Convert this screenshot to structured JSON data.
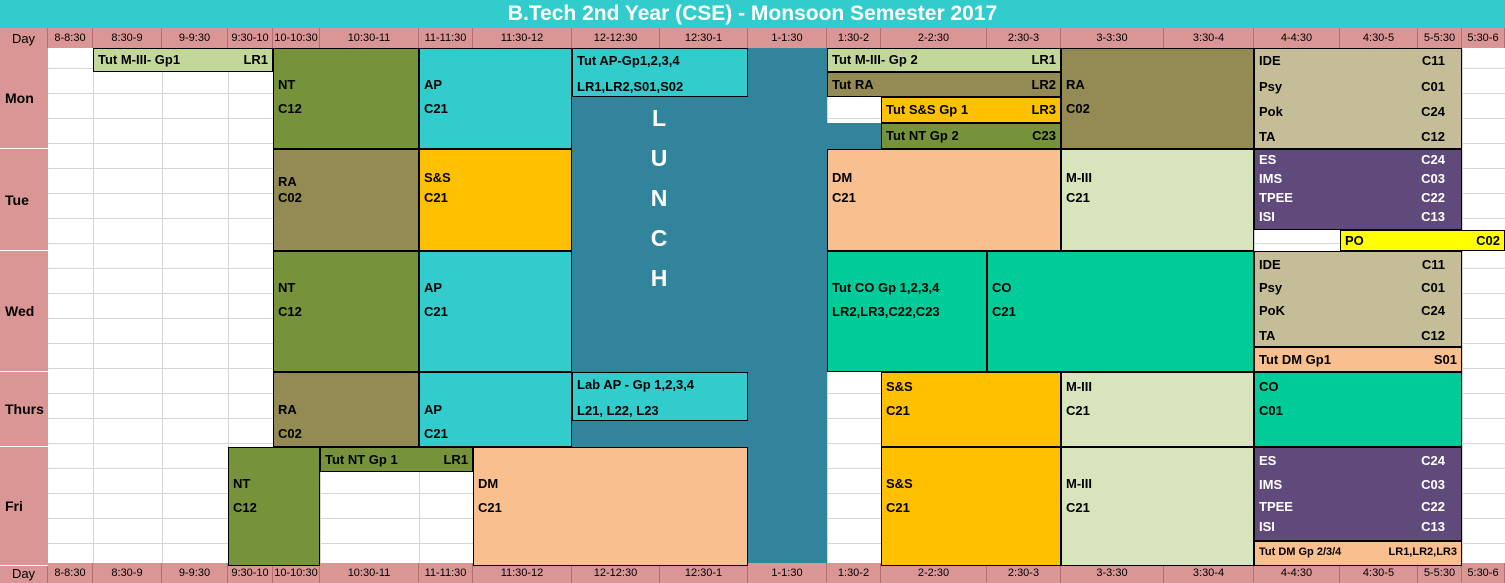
{
  "title": "B.Tech 2nd Year (CSE) - Monsoon Semester 2017",
  "header_label": "Day",
  "time_slots": [
    "8-8:30",
    "8:30-9",
    "9-9:30",
    "9:30-10",
    "10-10:30",
    "10:30-11",
    "11-11:30",
    "11:30-12",
    "12-12:30",
    "12:30-1",
    "1-1:30",
    "1:30-2",
    "2-2:30",
    "2:30-3",
    "3-3:30",
    "3:30-4",
    "4-4:30",
    "4:30-5",
    "5-5:30",
    "5:30-6"
  ],
  "days": [
    "Mon",
    "Tue",
    "Wed",
    "Thurs",
    "Fri"
  ],
  "lunch_letters": [
    "L",
    "U",
    "N",
    "C",
    "H"
  ],
  "colors": {
    "title_bg": "#33cccc",
    "header_bg": "#da9694",
    "lunch": "#31849b",
    "NT": "#76933c",
    "AP": "#33cccc",
    "RA": "#948a54",
    "S&S": "#ffc000",
    "DM": "#fabf8f",
    "M-III": "#d8e4bc",
    "CO": "#00cc99",
    "tut_light": "#c4d79b",
    "electives_1": "#c4bd97",
    "electives_2": "#604a7b",
    "PO": "#ffff00"
  },
  "blocks": {
    "mon_tut_m3": {
      "l1": "Tut M-III- Gp1",
      "l2": "LR1"
    },
    "mon_nt": {
      "l1": "NT",
      "l2": "C12"
    },
    "mon_ap": {
      "l1": "AP",
      "l2": "C21"
    },
    "mon_tut_ap": {
      "l1": "Tut AP-Gp1,2,3,4",
      "l2": "LR1,LR2,S01,S02"
    },
    "mon_tut_m3_gp2": {
      "l1": "Tut M-III- Gp 2",
      "l2": "LR1"
    },
    "mon_tut_ra": {
      "l1": "Tut RA",
      "l2": "LR2"
    },
    "mon_tut_ss": {
      "l1": "Tut S&S Gp 1",
      "l2": "LR3"
    },
    "mon_tut_nt": {
      "l1": "Tut NT Gp 2",
      "l2": "C23"
    },
    "mon_ra": {
      "l1": "RA",
      "l2": "C02"
    },
    "mon_elec": [
      {
        "name": "IDE",
        "room": "C11"
      },
      {
        "name": "Psy",
        "room": "C01"
      },
      {
        "name": "Pok",
        "room": "C24"
      },
      {
        "name": "TA",
        "room": "C12"
      }
    ],
    "tue_ra": {
      "l1": "RA",
      "l2": "C02"
    },
    "tue_ss": {
      "l1": "S&S",
      "l2": "C21"
    },
    "tue_dm": {
      "l1": "DM",
      "l2": "C21"
    },
    "tue_m3": {
      "l1": "M-III",
      "l2": "C21"
    },
    "tue_elec": [
      {
        "name": "ES",
        "room": "C24"
      },
      {
        "name": "IMS",
        "room": "C03"
      },
      {
        "name": "TPEE",
        "room": "C22"
      },
      {
        "name": "ISI",
        "room": "C13"
      }
    ],
    "tue_po": {
      "l1": "PO",
      "l2": "C02"
    },
    "wed_nt": {
      "l1": "NT",
      "l2": "C12"
    },
    "wed_ap": {
      "l1": "AP",
      "l2": "C21"
    },
    "wed_tut_co": {
      "l1": "Tut  CO Gp 1,2,3,4",
      "l2": "LR2,LR3,C22,C23"
    },
    "wed_co": {
      "l1": "CO",
      "l2": "C21"
    },
    "wed_elec": [
      {
        "name": "IDE",
        "room": "C11"
      },
      {
        "name": "Psy",
        "room": "C01"
      },
      {
        "name": "PoK",
        "room": "C24"
      },
      {
        "name": "TA",
        "room": "C12"
      }
    ],
    "wed_tut_dm": {
      "l1": "Tut DM Gp1",
      "l2": "S01"
    },
    "thu_ra": {
      "l1": "RA",
      "l2": "C02"
    },
    "thu_ap": {
      "l1": "AP",
      "l2": "C21"
    },
    "thu_lab_ap": {
      "l1": "Lab AP - Gp 1,2,3,4",
      "l2": "L21, L22, L23"
    },
    "thu_ss": {
      "l1": "S&S",
      "l2": "C21"
    },
    "thu_m3": {
      "l1": "M-III",
      "l2": "C21"
    },
    "thu_co": {
      "l1": "CO",
      "l2": "C01"
    },
    "fri_nt": {
      "l1": "NT",
      "l2": "C12"
    },
    "fri_tut_nt": {
      "l1": "Tut NT Gp 1",
      "l2": "LR1"
    },
    "fri_dm": {
      "l1": "DM",
      "l2": "C21"
    },
    "fri_ss": {
      "l1": "S&S",
      "l2": "C21"
    },
    "fri_m3": {
      "l1": "M-III",
      "l2": "C21"
    },
    "fri_elec": [
      {
        "name": "ES",
        "room": "C24"
      },
      {
        "name": "IMS",
        "room": "C03"
      },
      {
        "name": "TPEE",
        "room": "C22"
      },
      {
        "name": "ISI",
        "room": "C13"
      }
    ],
    "fri_tut_dm": {
      "l1": "Tut DM Gp 2/3/4",
      "l2": "LR1,LR2,LR3"
    }
  }
}
